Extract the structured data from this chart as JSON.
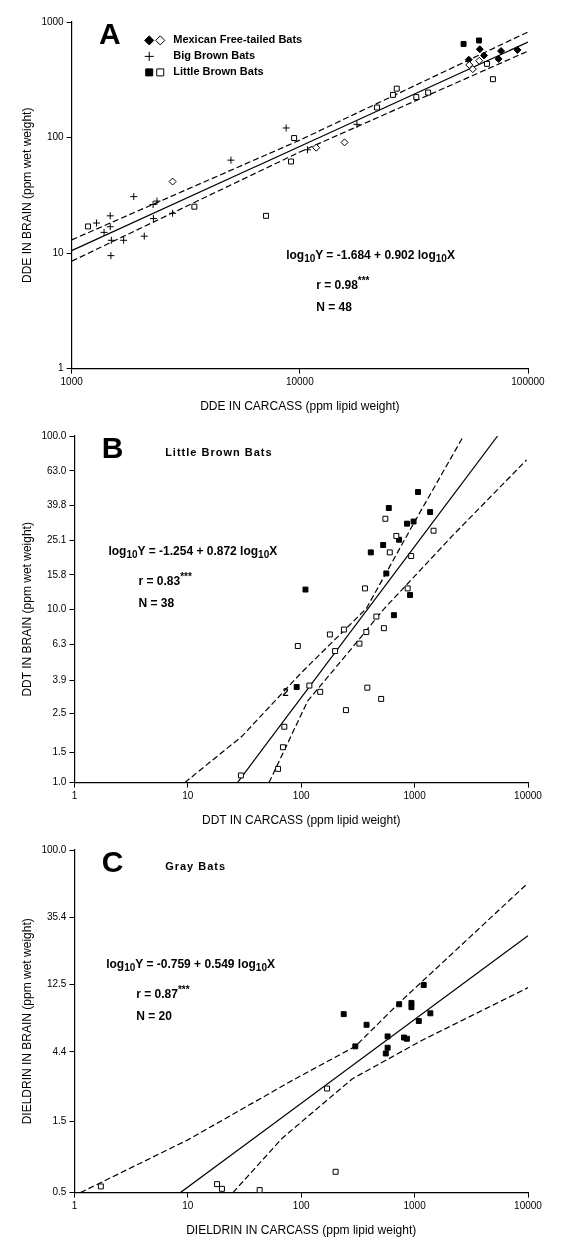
{
  "chart_data": [
    {
      "type": "scatter",
      "title": "A",
      "xlabel": "DDE IN CARCASS (ppm lipid weight)",
      "ylabel": "DDE IN BRAIN (ppm wet weight)",
      "log": "xy",
      "grid": false,
      "legend": "top left",
      "xlim": [
        1000,
        100000
      ],
      "ylim": [
        1,
        1000
      ],
      "xticks": [
        1000,
        10000,
        100000
      ],
      "yticks": [
        1,
        10,
        100,
        1000
      ],
      "annotations": [
        "log$_{10}$Y = -1.684 + 0.902 log$_{10}$X",
        "r = 0.98$^{***}$",
        "N = 48"
      ],
      "series": [
        {
          "name": "Mexican Free-tailed Bats",
          "color": "#ffffff",
          "marker": "diamond",
          "x": [
            2770,
            11800,
            15700,
            55300,
            57300,
            61100
          ],
          "values": [
            41.6,
            81.7,
            90.8,
            425,
            391,
            462
          ]
        },
        {
          "color": "#000000",
          "marker": "diamond",
          "x": [
            55000,
            61500,
            64200,
            74300,
            76200,
            89900
          ],
          "values": [
            472,
            581,
            513,
            479,
            561,
            573
          ]
        },
        {
          "name": "Big Brown Bats",
          "color": "#000000",
          "marker": "cross",
          "x": [
            1285,
            1387,
            1476,
            1476,
            1493,
            1486,
            1690,
            1871,
            2081,
            2275,
            2365,
            2282,
            2770,
            4990,
            8710,
            10800,
            17800
          ],
          "values": [
            18.2,
            15.1,
            21.0,
            16.9,
            12.9,
            9.5,
            12.9,
            30.8,
            14.0,
            26.3,
            28.2,
            19.9,
            22.1,
            63.7,
            121,
            78.3,
            130
          ]
        },
        {
          "name": "Little Brown Bats",
          "color": "#ffffff",
          "marker": "square",
          "x": [
            1180,
            3450,
            7110,
            9150,
            9440,
            21800,
            25600,
            26600,
            32400,
            36500,
            66100,
            70200
          ],
          "values": [
            17.0,
            25.2,
            21.0,
            62,
            99,
            182,
            234,
            265,
            224,
            245,
            434,
            320
          ]
        },
        {
          "color": "#000000",
          "marker": "square",
          "x": [
            52200,
            61000
          ],
          "values": [
            646,
            692
          ]
        },
        {
          "type": "line",
          "color": "#000000",
          "marker": "none",
          "line_style": "solid",
          "x": [
            1000,
            100000
          ],
          "values": [
            10.5,
            670
          ]
        },
        {
          "type": "line",
          "color": "#000000",
          "marker": "none",
          "line_style": "dashed",
          "x": [
            1000,
            10000,
            100000
          ],
          "values": [
            13,
            95,
            820
          ]
        },
        {
          "type": "line",
          "color": "#000000",
          "marker": "none",
          "line_style": "dashed",
          "x": [
            1000,
            10000,
            100000
          ],
          "values": [
            8.5,
            75,
            560
          ]
        }
      ]
    },
    {
      "type": "scatter",
      "title": "B",
      "subtitle": "Little Brown Bats",
      "xlabel": "DDT IN CARCASS (ppm lipid weight)",
      "ylabel": "DDT IN BRAIN (ppm wet weight)",
      "log": "xy",
      "grid": false,
      "xlim": [
        1,
        10000
      ],
      "ylim": [
        1,
        100
      ],
      "xticks": [
        1,
        10,
        100,
        1000,
        10000
      ],
      "yticks": [
        {
          "value": 1,
          "label": "1.0"
        },
        1.5,
        2.5,
        3.9,
        6.3,
        {
          "value": 10,
          "label": "10.0"
        },
        15.8,
        25.1,
        39.8,
        {
          "value": 63,
          "label": "63.0"
        },
        {
          "value": 100,
          "label": "100.0"
        }
      ],
      "annotations": [
        "log$_{10}$Y = -1.254 + 0.872 log$_{10}$X",
        "r = 0.83$^{***}$",
        "N = 38",
        {
          "text": "2",
          "x": 91.2,
          "y": 3.56
        }
      ],
      "series": [
        {
          "color": "#ffffff",
          "marker": "square",
          "x": [
            29.4,
            62.5,
            69,
            71,
            93.3,
            118,
            147,
            179,
            199,
            238,
            248,
            326,
            365,
            375,
            383,
            460,
            507,
            536,
            552,
            604,
            690,
            869,
            933,
            1469
          ],
          "values": [
            1.1,
            1.2,
            1.6,
            2.1,
            6.14,
            3.63,
            3.34,
            7.16,
            5.74,
            7.64,
            2.62,
            6.34,
            13.2,
            7.39,
            3.53,
            9.08,
            3.04,
            7.78,
            33.3,
            21.3,
            26.5,
            13.2,
            20.3,
            28.4
          ]
        },
        {
          "color": "#000000",
          "marker": "square",
          "x": [
            91.2,
            109,
            411,
            528,
            563,
            592,
            657,
            730,
            857,
            912,
            979,
            1072,
            1370
          ],
          "values": [
            3.56,
            13.0,
            21.3,
            23.5,
            16.1,
            38.4,
            9.25,
            25.2,
            31.2,
            12.1,
            32.1,
            47.5,
            36.4
          ]
        },
        {
          "type": "line",
          "color": "#000000",
          "marker": "none",
          "line_style": "solid",
          "x": [
            27.4,
            5390
          ],
          "values": [
            1,
            100
          ]
        },
        {
          "type": "line",
          "color": "#000000",
          "marker": "none",
          "line_style": "dashed",
          "x": [
            9.4,
            30,
            100,
            375,
            1000,
            2700
          ],
          "values": [
            1.0,
            1.85,
            4.3,
            10.1,
            32,
            100
          ]
        },
        {
          "type": "line",
          "color": "#000000",
          "marker": "none",
          "line_style": "dashed",
          "x": [
            52,
            114,
            264,
            533,
            2160,
            9720
          ],
          "values": [
            1.0,
            2.96,
            5.7,
            10.0,
            26.6,
            72.8
          ]
        }
      ]
    },
    {
      "type": "scatter",
      "title": "C",
      "subtitle": "Gray Bats",
      "xlabel": "DIELDRIN IN CARCASS (ppm lipid weight)",
      "ylabel": "DIELDRIN IN BRAIN (ppm wet weight)",
      "log": "xy",
      "grid": false,
      "xlim": [
        1,
        10000
      ],
      "ylim": [
        0.5,
        100
      ],
      "xticks": [
        1,
        10,
        100,
        1000,
        10000
      ],
      "yticks": [
        0.5,
        1.5,
        4.4,
        12.5,
        35.4,
        {
          "value": 100,
          "label": "100.0"
        }
      ],
      "annotations": [
        "log$_{10}$Y = -0.759 + 0.549 log$_{10}$X",
        "r = 0.87$^{***}$",
        "N = 20"
      ],
      "series": [
        {
          "color": "#ffffff",
          "marker": "square",
          "x": [
            1.71,
            18.1,
            20,
            43,
            169,
            201
          ],
          "values": [
            0.55,
            0.57,
            0.53,
            0.52,
            2.5,
            0.69
          ]
        },
        {
          "color": "#000000",
          "marker": "square",
          "x": [
            237,
            300,
            377,
            557,
            578,
            578,
            731,
            807,
            855,
            938,
            938,
            1089,
            1203,
            1377
          ],
          "values": [
            7.9,
            4.8,
            6.7,
            4.3,
            4.7,
            5.6,
            9.2,
            5.5,
            5.4,
            9.4,
            8.8,
            7.1,
            12.4,
            8.0
          ]
        },
        {
          "type": "line",
          "color": "#000000",
          "marker": "none",
          "line_style": "solid",
          "x": [
            8.6,
            10000
          ],
          "values": [
            0.5,
            26.6
          ]
        },
        {
          "type": "line",
          "color": "#000000",
          "marker": "none",
          "line_style": "dashed",
          "x": [
            1.13,
            10,
            84,
            300,
            731,
            10000
          ],
          "values": [
            0.5,
            1.13,
            2.84,
            4.8,
            9.4,
            60
          ]
        },
        {
          "type": "line",
          "color": "#000000",
          "marker": "none",
          "line_style": "dashed",
          "x": [
            25,
            68,
            283,
            1178,
            10000
          ],
          "values": [
            0.5,
            1.16,
            2.91,
            5.3,
            11.9
          ]
        }
      ]
    }
  ]
}
